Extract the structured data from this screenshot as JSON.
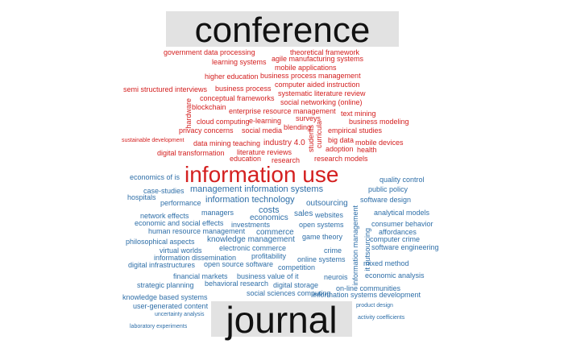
{
  "top_label": "conference",
  "bottom_label": "journal",
  "colors": {
    "conference": "#d42020",
    "journal": "#2f6fa8",
    "banner": "#e2e2e2"
  },
  "words": [
    {
      "t": "government data processing",
      "g": "conference"
    },
    {
      "t": "theoretical framework",
      "g": "conference"
    },
    {
      "t": "learning systems",
      "g": "conference"
    },
    {
      "t": "agile manufacturing systems",
      "g": "conference"
    },
    {
      "t": "mobile applications",
      "g": "conference"
    },
    {
      "t": "higher education",
      "g": "conference"
    },
    {
      "t": "business process management",
      "g": "conference"
    },
    {
      "t": "semi structured interviews",
      "g": "conference"
    },
    {
      "t": "business process",
      "g": "conference"
    },
    {
      "t": "computer aided instruction",
      "g": "conference"
    },
    {
      "t": "systematic literature review",
      "g": "conference"
    },
    {
      "t": "conceptual frameworks",
      "g": "conference"
    },
    {
      "t": "social networking (online)",
      "g": "conference"
    },
    {
      "t": "hardware",
      "g": "conference",
      "v": 1
    },
    {
      "t": "blockchain",
      "g": "conference"
    },
    {
      "t": "enterprise resource management",
      "g": "conference"
    },
    {
      "t": "text mining",
      "g": "conference"
    },
    {
      "t": "cloud computing",
      "g": "conference"
    },
    {
      "t": "e-learning",
      "g": "conference"
    },
    {
      "t": "surveys",
      "g": "conference"
    },
    {
      "t": "business modeling",
      "g": "conference"
    },
    {
      "t": "privacy concerns",
      "g": "conference"
    },
    {
      "t": "social media",
      "g": "conference"
    },
    {
      "t": "blending",
      "g": "conference"
    },
    {
      "t": "empirical studies",
      "g": "conference"
    },
    {
      "t": "curricula",
      "g": "conference",
      "v": 1
    },
    {
      "t": "sustainable development",
      "g": "conference"
    },
    {
      "t": "data mining",
      "g": "conference"
    },
    {
      "t": "teaching",
      "g": "conference"
    },
    {
      "t": "industry 4.0",
      "g": "conference"
    },
    {
      "t": "big data",
      "g": "conference"
    },
    {
      "t": "mobile devices",
      "g": "conference"
    },
    {
      "t": "students",
      "g": "conference",
      "v": 1
    },
    {
      "t": "adoption",
      "g": "conference"
    },
    {
      "t": "health",
      "g": "conference"
    },
    {
      "t": "digital transformation",
      "g": "conference"
    },
    {
      "t": "literature reviews",
      "g": "conference"
    },
    {
      "t": "education",
      "g": "conference"
    },
    {
      "t": "research",
      "g": "conference"
    },
    {
      "t": "research models",
      "g": "conference"
    },
    {
      "t": "information use",
      "g": "conference"
    },
    {
      "t": "economics of is",
      "g": "journal"
    },
    {
      "t": "quality control",
      "g": "journal"
    },
    {
      "t": "public policy",
      "g": "journal"
    },
    {
      "t": "case-studies",
      "g": "journal"
    },
    {
      "t": "management information systems",
      "g": "journal"
    },
    {
      "t": "hospitals",
      "g": "journal"
    },
    {
      "t": "information technology",
      "g": "journal"
    },
    {
      "t": "software design",
      "g": "journal"
    },
    {
      "t": "performance",
      "g": "journal"
    },
    {
      "t": "outsourcing",
      "g": "journal"
    },
    {
      "t": "costs",
      "g": "journal"
    },
    {
      "t": "managers",
      "g": "journal"
    },
    {
      "t": "sales",
      "g": "journal"
    },
    {
      "t": "websites",
      "g": "journal"
    },
    {
      "t": "analytical models",
      "g": "journal"
    },
    {
      "t": "network effects",
      "g": "journal"
    },
    {
      "t": "economics",
      "g": "journal"
    },
    {
      "t": "information management",
      "g": "journal",
      "v": 1
    },
    {
      "t": "economic and social effects",
      "g": "journal"
    },
    {
      "t": "investments",
      "g": "journal"
    },
    {
      "t": "open systems",
      "g": "journal"
    },
    {
      "t": "consumer behavior",
      "g": "journal"
    },
    {
      "t": "human resource management",
      "g": "journal"
    },
    {
      "t": "commerce",
      "g": "journal"
    },
    {
      "t": "affordances",
      "g": "journal"
    },
    {
      "t": "game theory",
      "g": "journal"
    },
    {
      "t": "it outsourcing",
      "g": "journal",
      "v": 1
    },
    {
      "t": "philosophical aspects",
      "g": "journal"
    },
    {
      "t": "knowledge management",
      "g": "journal"
    },
    {
      "t": "computer crime",
      "g": "journal"
    },
    {
      "t": "virtual worlds",
      "g": "journal"
    },
    {
      "t": "electronic commerce",
      "g": "journal"
    },
    {
      "t": "crime",
      "g": "journal"
    },
    {
      "t": "software engineering",
      "g": "journal"
    },
    {
      "t": "information dissemination",
      "g": "journal"
    },
    {
      "t": "profitability",
      "g": "journal"
    },
    {
      "t": "online systems",
      "g": "journal"
    },
    {
      "t": "digital infrastructures",
      "g": "journal"
    },
    {
      "t": "open source software",
      "g": "journal"
    },
    {
      "t": "competition",
      "g": "journal"
    },
    {
      "t": "mixed method",
      "g": "journal"
    },
    {
      "t": "financial markets",
      "g": "journal"
    },
    {
      "t": "business value of it",
      "g": "journal"
    },
    {
      "t": "neurois",
      "g": "journal"
    },
    {
      "t": "economic analysis",
      "g": "journal"
    },
    {
      "t": "strategic planning",
      "g": "journal"
    },
    {
      "t": "behavioral research",
      "g": "journal"
    },
    {
      "t": "digital storage",
      "g": "journal"
    },
    {
      "t": "on-line communities",
      "g": "journal"
    },
    {
      "t": "knowledge based systems",
      "g": "journal"
    },
    {
      "t": "social sciences computing",
      "g": "journal"
    },
    {
      "t": "information systems development",
      "g": "journal"
    },
    {
      "t": "user-generated content",
      "g": "journal"
    },
    {
      "t": "product design",
      "g": "journal"
    },
    {
      "t": "uncertainty analysis",
      "g": "journal"
    },
    {
      "t": "activity coefficients",
      "g": "journal"
    },
    {
      "t": "laboratory experiments",
      "g": "journal"
    }
  ]
}
